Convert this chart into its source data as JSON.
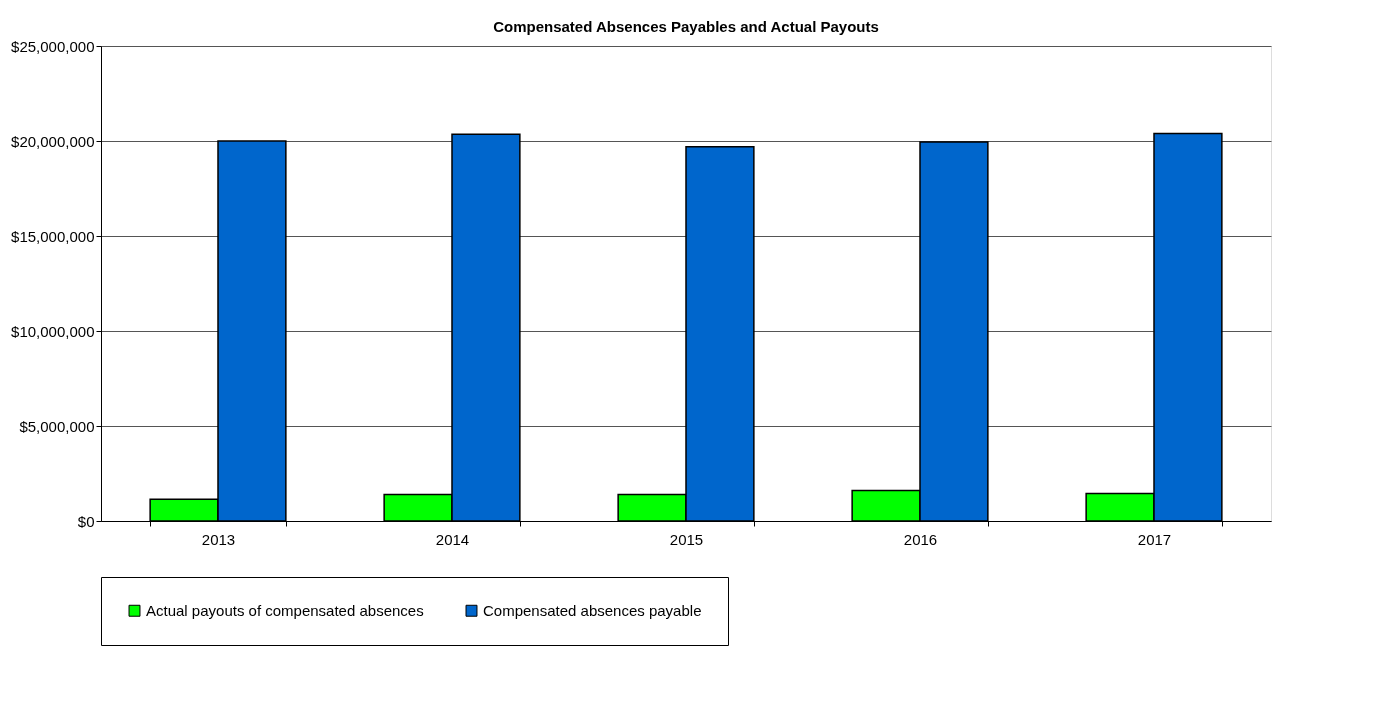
{
  "chart_data": {
    "type": "bar",
    "title": "Compensated Absences Payables and Actual Payouts",
    "categories": [
      "2013",
      "2014",
      "2015",
      "2016",
      "2017"
    ],
    "series": [
      {
        "name": "Actual payouts of compensated absences",
        "color": "#00ff00",
        "values": [
          1150000,
          1400000,
          1400000,
          1600000,
          1450000
        ]
      },
      {
        "name": "Compensated absences payable",
        "color": "#0066cc",
        "values": [
          20000000,
          20350000,
          19700000,
          19950000,
          20400000
        ]
      }
    ],
    "ylim": [
      0,
      25000000
    ],
    "yticks": [
      {
        "value": 0,
        "label": "$0"
      },
      {
        "value": 5000000,
        "label": "$5,000,000"
      },
      {
        "value": 10000000,
        "label": "$10,000,000"
      },
      {
        "value": 15000000,
        "label": "$15,000,000"
      },
      {
        "value": 20000000,
        "label": "$20,000,000"
      },
      {
        "value": 25000000,
        "label": "$25,000,000"
      }
    ],
    "grid": "y",
    "legend": "bottom"
  }
}
